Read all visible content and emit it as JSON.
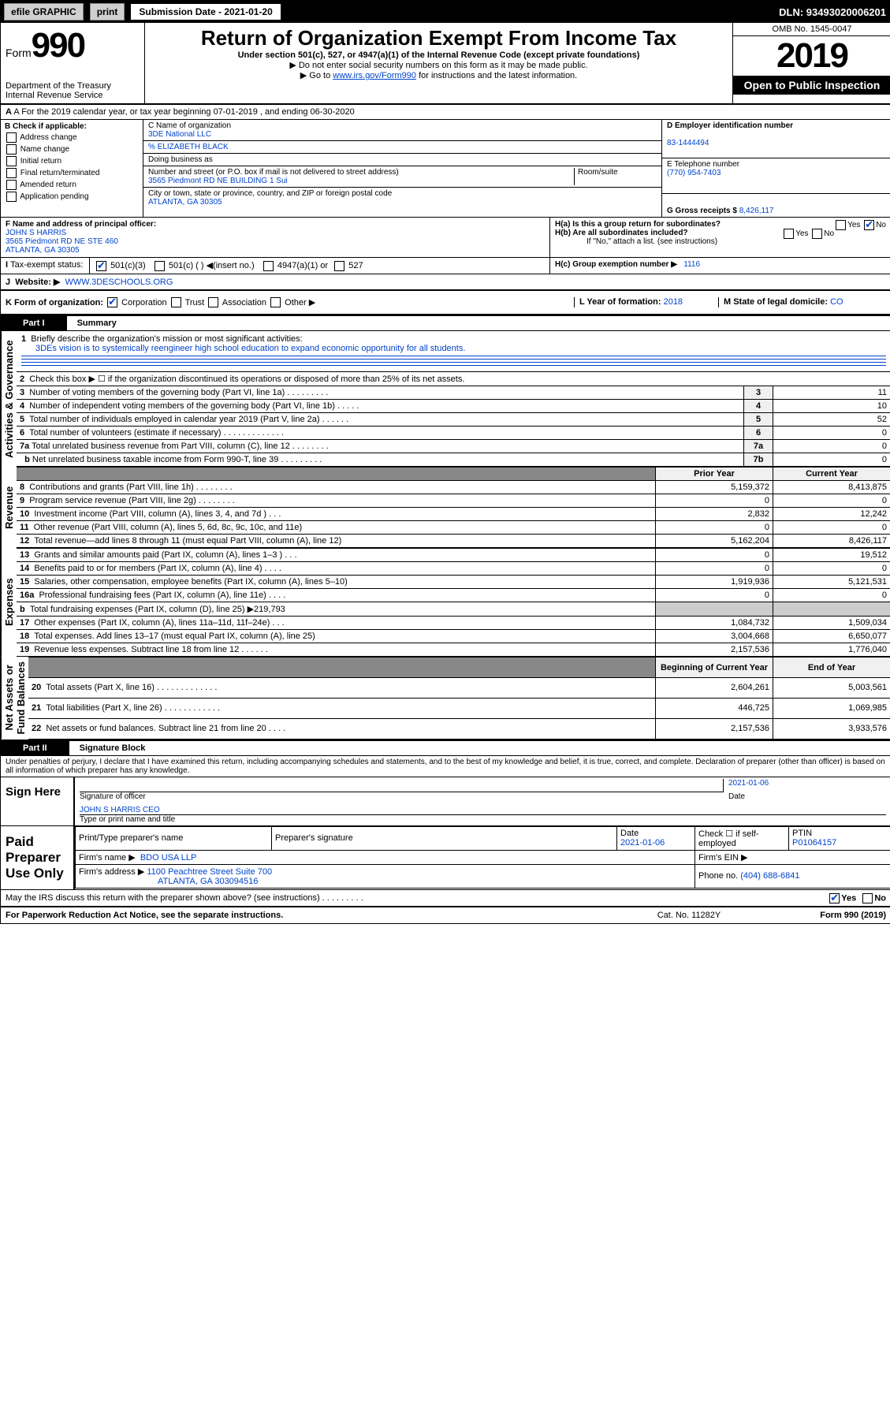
{
  "topbar": {
    "efile": "efile GRAPHIC",
    "print": "print",
    "subdate_label": "Submission Date - 2021-01-20",
    "dln": "DLN: 93493020006201"
  },
  "hdr": {
    "form_label": "Form",
    "form_no": "990",
    "title": "Return of Organization Exempt From Income Tax",
    "sub1": "Under section 501(c), 527, or 4947(a)(1) of the Internal Revenue Code (except private foundations)",
    "sub2": "▶ Do not enter social security numbers on this form as it may be made public.",
    "sub3_pre": "▶ Go to ",
    "sub3_link": "www.irs.gov/Form990",
    "sub3_post": " for instructions and the latest information.",
    "dept": "Department of the Treasury\nInternal Revenue Service",
    "omb": "OMB No. 1545-0047",
    "year": "2019",
    "open": "Open to Public Inspection"
  },
  "A": {
    "line": "A For the 2019 calendar year, or tax year beginning 07-01-2019    , and ending 06-30-2020"
  },
  "B": {
    "label": "B Check if applicable:",
    "addr": "Address change",
    "name": "Name change",
    "init": "Initial return",
    "final": "Final return/terminated",
    "amend": "Amended return",
    "app": "Application pending"
  },
  "C": {
    "name_lbl": "C Name of organization",
    "name": "3DE National LLC",
    "care_lbl": "% ELIZABETH BLACK",
    "dba_lbl": "Doing business as",
    "addr_lbl": "Number and street (or P.O. box if mail is not delivered to street address)",
    "room": "Room/suite",
    "addr": "3565 Piedmont RD NE BUILDING 1 Sui",
    "city_lbl": "City or town, state or province, country, and ZIP or foreign postal code",
    "city": "ATLANTA, GA  30305"
  },
  "D": {
    "lbl": "D Employer identification number",
    "val": "83-1444494"
  },
  "E": {
    "lbl": "E Telephone number",
    "val": "(770) 954-7403"
  },
  "G": {
    "lbl": "G Gross receipts $",
    "val": "8,426,117"
  },
  "F": {
    "lbl": "F  Name and address of principal officer:",
    "name": "JOHN S HARRIS",
    "addr1": "3565 Piedmont RD NE STE 460",
    "addr2": "ATLANTA, GA  30305"
  },
  "H": {
    "a": "H(a)  Is this a group return for subordinates?",
    "b": "H(b)  Are all subordinates included?",
    "bnote": "If \"No,\" attach a list. (see instructions)",
    "c": "H(c)  Group exemption number ▶",
    "cval": "1116",
    "yes": "Yes",
    "no": "No"
  },
  "I": {
    "lbl": "Tax-exempt status:",
    "c3": "501(c)(3)",
    "c": "501(c) (  ) ◀(insert no.)",
    "a1": "4947(a)(1) or",
    "s527": "527"
  },
  "J": {
    "lbl": "Website: ▶",
    "val": "WWW.3DESCHOOLS.ORG"
  },
  "K": {
    "lbl": "K Form of organization:",
    "corp": "Corporation",
    "trust": "Trust",
    "assoc": "Association",
    "other": "Other ▶"
  },
  "L": {
    "lbl": "L Year of formation:",
    "val": "2018"
  },
  "M": {
    "lbl": "M State of legal domicile:",
    "val": "CO"
  },
  "part1": {
    "label": "Part I",
    "title": "Summary"
  },
  "p1": {
    "l1": "Briefly describe the organization's mission or most significant activities:",
    "l1v": "3DEs vision is to systemically reengineer high school education to expand economic opportunity for all students.",
    "l2": "Check this box ▶ ☐  if the organization discontinued its operations or disposed of more than 25% of its net assets.",
    "l3": "Number of voting members of the governing body (Part VI, line 1a)   .    .    .    .    .    .    .    .    .",
    "v3": "11",
    "l4": "Number of independent voting members of the governing body (Part VI, line 1b)   .    .    .    .    .",
    "v4": "10",
    "l5": "Total number of individuals employed in calendar year 2019 (Part V, line 2a)   .    .    .    .    .    .",
    "v5": "52",
    "l6": "Total number of volunteers (estimate if necessary)   .    .    .    .    .    .    .    .    .    .    .    .    .",
    "v6": "0",
    "l7a": "Total unrelated business revenue from Part VIII, column (C), line 12   .    .    .    .    .    .    .    .",
    "v7a": "0",
    "l7b": "Net unrelated business taxable income from Form 990-T, line 39   .    .    .    .    .    .    .    .    .",
    "v7b": "0"
  },
  "tbl": {
    "hprior": "Prior Year",
    "hcurr": "Current Year",
    "hbeg": "Beginning of Current Year",
    "hend": "End of Year",
    "rows": [
      {
        "sec": "Revenue",
        "n": "8",
        "t": "Contributions and grants (Part VIII, line 1h)   .    .    .    .    .    .    .    .",
        "p": "5,159,372",
        "c": "8,413,875"
      },
      {
        "n": "9",
        "t": "Program service revenue (Part VIII, line 2g)   .    .    .    .    .    .    .    .",
        "p": "0",
        "c": "0"
      },
      {
        "n": "10",
        "t": "Investment income (Part VIII, column (A), lines 3, 4, and 7d )   .    .    .",
        "p": "2,832",
        "c": "12,242"
      },
      {
        "n": "11",
        "t": "Other revenue (Part VIII, column (A), lines 5, 6d, 8c, 9c, 10c, and 11e)",
        "p": "0",
        "c": "0"
      },
      {
        "n": "12",
        "t": "Total revenue—add lines 8 through 11 (must equal Part VIII, column (A), line 12)",
        "p": "5,162,204",
        "c": "8,426,117"
      }
    ],
    "exp": [
      {
        "sec": "Expenses",
        "n": "13",
        "t": "Grants and similar amounts paid (Part IX, column (A), lines 1–3 )   .    .    .",
        "p": "0",
        "c": "19,512"
      },
      {
        "n": "14",
        "t": "Benefits paid to or for members (Part IX, column (A), line 4)   .    .    .    .",
        "p": "0",
        "c": "0"
      },
      {
        "n": "15",
        "t": "Salaries, other compensation, employee benefits (Part IX, column (A), lines 5–10)",
        "p": "1,919,936",
        "c": "5,121,531"
      },
      {
        "n": "16a",
        "t": "Professional fundraising fees (Part IX, column (A), line 11e)   .    .    .    .",
        "p": "0",
        "c": "0"
      },
      {
        "n": "b",
        "t": "Total fundraising expenses (Part IX, column (D), line 25) ▶219,793",
        "p": "",
        "c": "",
        "shade": true
      },
      {
        "n": "17",
        "t": "Other expenses (Part IX, column (A), lines 11a–11d, 11f–24e)   .    .    .",
        "p": "1,084,732",
        "c": "1,509,034"
      },
      {
        "n": "18",
        "t": "Total expenses. Add lines 13–17 (must equal Part IX, column (A), line 25)",
        "p": "3,004,668",
        "c": "6,650,077"
      },
      {
        "n": "19",
        "t": "Revenue less expenses. Subtract line 18 from line 12   .    .    .    .    .    .",
        "p": "2,157,536",
        "c": "1,776,040"
      }
    ],
    "net": [
      {
        "sec": "Net Assets or Fund Balances",
        "n": "20",
        "t": "Total assets (Part X, line 16)   .    .    .    .    .    .    .    .    .    .    .    .    .",
        "p": "2,604,261",
        "c": "5,003,561"
      },
      {
        "n": "21",
        "t": "Total liabilities (Part X, line 26)   .    .    .    .    .    .    .    .    .    .    .    .",
        "p": "446,725",
        "c": "1,069,985"
      },
      {
        "n": "22",
        "t": "Net assets or fund balances. Subtract line 21 from line 20   .    .    .    .",
        "p": "2,157,536",
        "c": "3,933,576"
      }
    ]
  },
  "vlabels": {
    "gov": "Activities & Governance",
    "rev": "Revenue",
    "exp": "Expenses",
    "net": "Net Assets or\nFund Balances"
  },
  "part2": {
    "label": "Part II",
    "title": "Signature Block",
    "decl": "Under penalties of perjury, I declare that I have examined this return, including accompanying schedules and statements, and to the best of my knowledge and belief, it is true, correct, and complete. Declaration of preparer (other than officer) is based on all information of which preparer has any knowledge."
  },
  "sign": {
    "here": "Sign Here",
    "sigof": "Signature of officer",
    "date": "2021-01-06",
    "datelbl": "Date",
    "name": "JOHN S HARRIS CEO",
    "namelbl": "Type or print name and title"
  },
  "paid": {
    "label": "Paid Preparer Use Only",
    "h1": "Print/Type preparer's name",
    "h2": "Preparer's signature",
    "h3": "Date",
    "h4": "Check ☐ if self-employed",
    "h5": "PTIN",
    "date": "2021-01-06",
    "ptin": "P01064157",
    "firm_lbl": "Firm's name   ▶",
    "firm": "BDO USA LLP",
    "ein_lbl": "Firm's EIN ▶",
    "addr_lbl": "Firm's address ▶",
    "addr1": "1100 Peachtree Street Suite 700",
    "addr2": "ATLANTA, GA  303094516",
    "phone_lbl": "Phone no.",
    "phone": "(404) 688-6841"
  },
  "discuss": {
    "q": "May the IRS discuss this return with the preparer shown above? (see instructions)   .    .    .    .    .    .    .    .    .",
    "yes": "Yes",
    "no": "No"
  },
  "foot": {
    "l": "For Paperwork Reduction Act Notice, see the separate instructions.",
    "m": "Cat. No. 11282Y",
    "r": "Form 990 (2019)"
  }
}
